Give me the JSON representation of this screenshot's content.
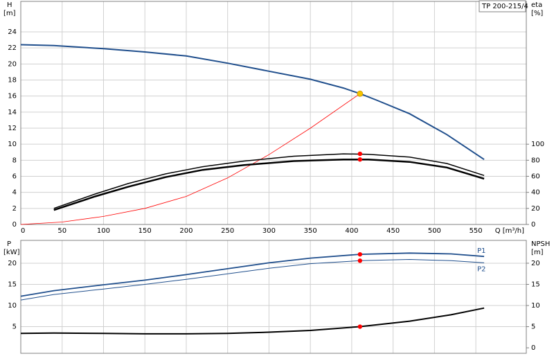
{
  "chart_data": [
    {
      "type": "line",
      "label_box": "TP 200-215/4",
      "ylabel": "H",
      "yunit": "[m]",
      "y2label": "eta",
      "y2unit": "[%]",
      "xlabel": "Q [m³/h]",
      "xlim": [
        0,
        611
      ],
      "xticks": [
        0,
        50,
        100,
        150,
        200,
        250,
        300,
        350,
        400,
        450,
        500,
        550
      ],
      "ylim": [
        0,
        27.8
      ],
      "yticks": [
        0,
        2,
        4,
        6,
        8,
        10,
        12,
        14,
        16,
        18,
        20,
        22,
        24
      ],
      "y2lim": [
        0,
        278
      ],
      "y2ticks": [
        0,
        20,
        40,
        60,
        80,
        100
      ],
      "grid": true,
      "show_xtick_labels": true,
      "duty_x": 410,
      "series": [
        {
          "color": "#1f4e8c",
          "width": 2,
          "axis": "y",
          "duty_value": 16.3,
          "duty_color": "#f5c400",
          "x": [
            0,
            40,
            100,
            150,
            200,
            250,
            300,
            350,
            390,
            410,
            430,
            470,
            515,
            560
          ],
          "values": [
            22.4,
            22.3,
            21.9,
            21.5,
            21,
            20.1,
            19.1,
            18.1,
            17,
            16.3,
            15.5,
            13.8,
            11.2,
            8.1
          ]
        },
        {
          "color": "#ff0000",
          "width": 0.8,
          "axis": "y",
          "x": [
            0,
            50,
            100,
            150,
            200,
            250,
            300,
            350,
            410
          ],
          "values": [
            0,
            0.3,
            1,
            2,
            3.5,
            5.8,
            8.7,
            12,
            16.3
          ]
        },
        {
          "color": "#000000",
          "width": 1.5,
          "axis": "y2",
          "duty_value": 88,
          "duty_color": "#ff0000",
          "x": [
            40,
            90,
            130,
            175,
            220,
            270,
            330,
            390,
            420,
            470,
            515,
            560
          ],
          "values": [
            20,
            38,
            51,
            63,
            72,
            79,
            85,
            88,
            87.5,
            84,
            76,
            61
          ]
        },
        {
          "color": "#000000",
          "width": 2.5,
          "axis": "y2",
          "duty_value": 81,
          "duty_color": "#ff0000",
          "x": [
            40,
            90,
            130,
            175,
            220,
            270,
            330,
            390,
            420,
            470,
            515,
            560
          ],
          "values": [
            18,
            35,
            47,
            59,
            68,
            74,
            79,
            81,
            81,
            78,
            71,
            57
          ]
        }
      ]
    },
    {
      "type": "line",
      "ylabel": "P",
      "yunit": "[kW]",
      "y2label": "NPSH",
      "y2unit": "[m]",
      "xlim": [
        0,
        611
      ],
      "xticks": [
        0,
        50,
        100,
        150,
        200,
        250,
        300,
        350,
        400,
        450,
        500,
        550
      ],
      "ylim": [
        -1.3,
        25.4
      ],
      "yticks": [
        5,
        10,
        15,
        20
      ],
      "y2lim": [
        -1.3,
        25.4
      ],
      "y2ticks": [
        0,
        5,
        10,
        15,
        20
      ],
      "grid": true,
      "show_xtick_labels": false,
      "duty_x": 410,
      "series": [
        {
          "name": "P1",
          "color": "#1f4e8c",
          "width": 1.8,
          "axis": "y",
          "duty_value": 22.1,
          "duty_color": "#ff0000",
          "x": [
            0,
            40,
            100,
            150,
            200,
            250,
            300,
            350,
            410,
            470,
            520,
            560
          ],
          "values": [
            12.2,
            13.5,
            14.9,
            16,
            17.3,
            18.7,
            20.1,
            21.2,
            22.1,
            22.4,
            22.2,
            21.6
          ]
        },
        {
          "name": "P2",
          "color": "#1f4e8c",
          "width": 1,
          "axis": "y",
          "duty_value": 20.6,
          "duty_color": "#ff0000",
          "x": [
            0,
            40,
            100,
            150,
            200,
            250,
            300,
            350,
            410,
            470,
            520,
            560
          ],
          "values": [
            11.3,
            12.6,
            13.9,
            15,
            16.2,
            17.5,
            18.8,
            19.9,
            20.6,
            20.9,
            20.6,
            20.1
          ]
        },
        {
          "color": "#000000",
          "width": 2,
          "axis": "y2",
          "duty_value": 5,
          "duty_color": "#ff0000",
          "x": [
            0,
            40,
            100,
            150,
            200,
            250,
            300,
            350,
            410,
            470,
            520,
            560
          ],
          "values": [
            3.4,
            3.5,
            3.4,
            3.3,
            3.3,
            3.4,
            3.7,
            4.1,
            5,
            6.3,
            7.8,
            9.4
          ]
        }
      ]
    }
  ]
}
